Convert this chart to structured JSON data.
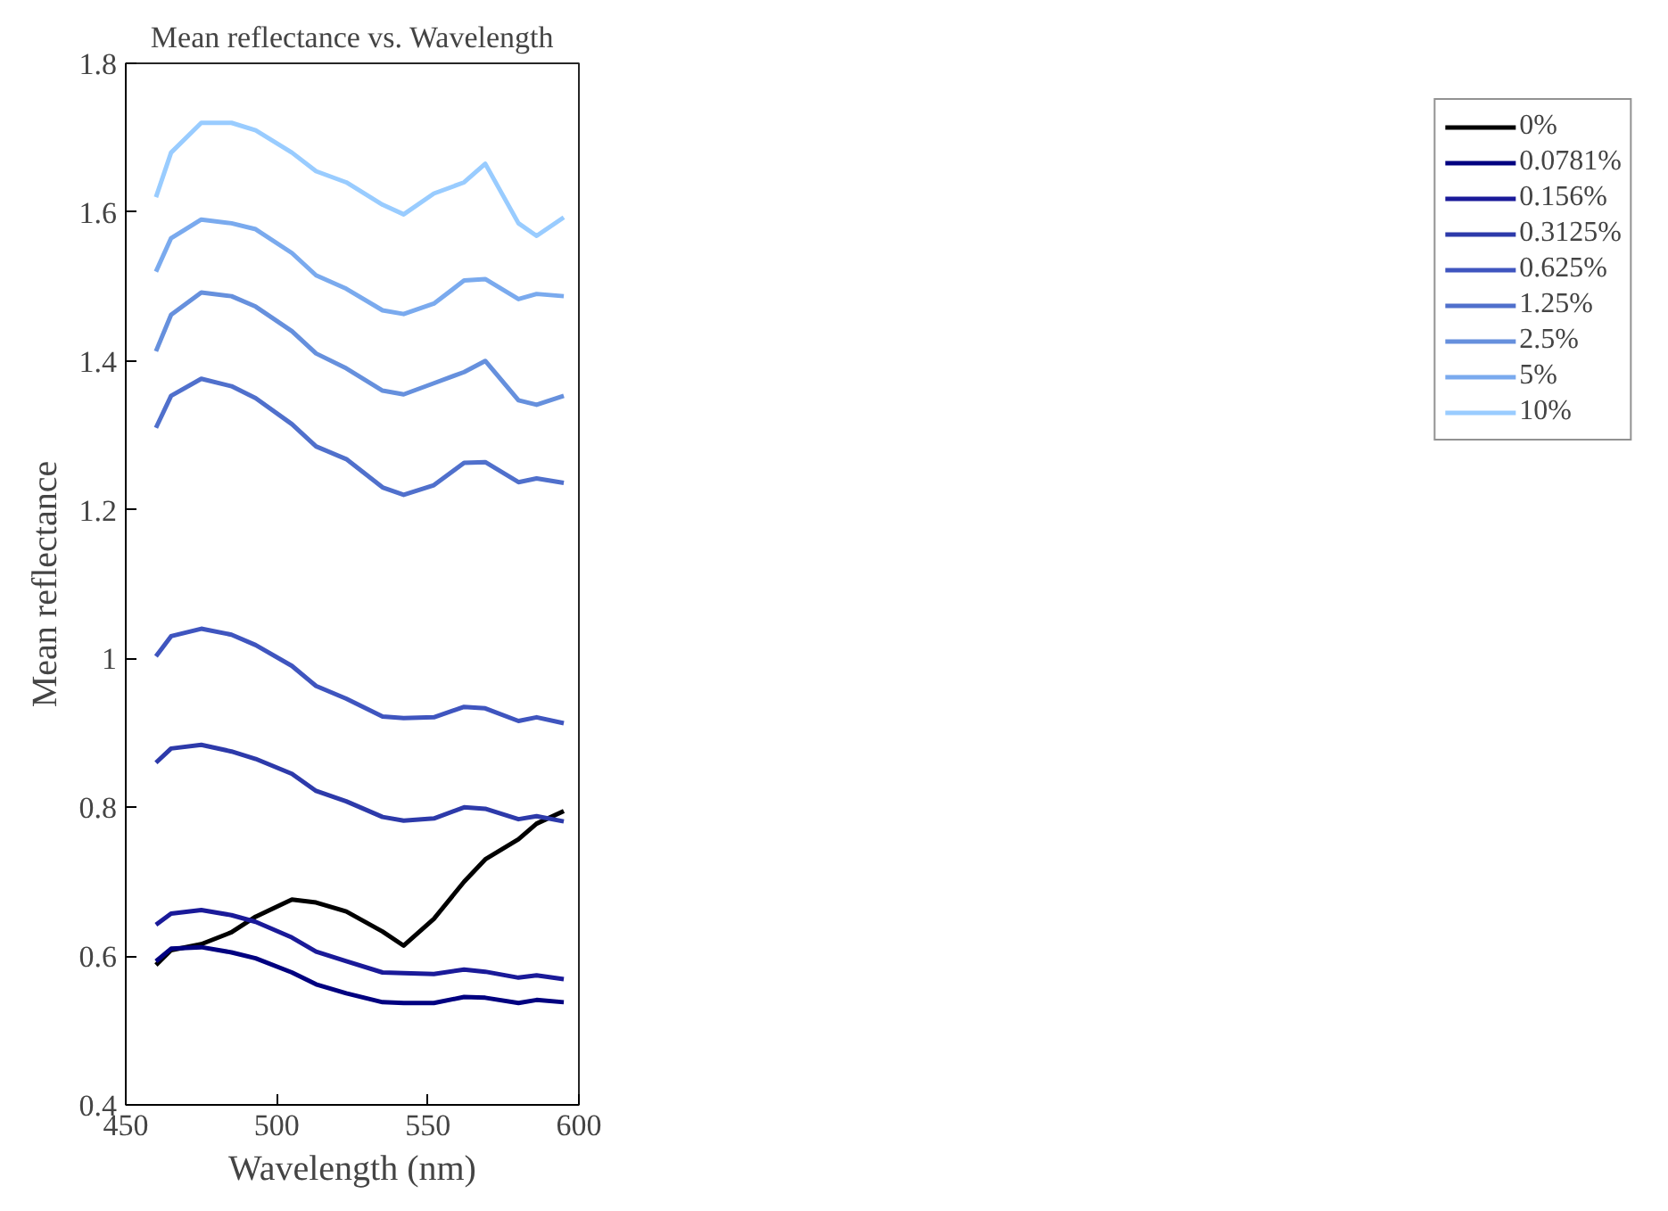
{
  "chart_data": {
    "type": "line",
    "title": "Mean reflectance vs. Wavelength",
    "xlabel": "Wavelength (nm)",
    "ylabel": "Mean reflectance",
    "x": [
      460,
      465,
      475,
      485,
      493,
      505,
      513,
      523,
      535,
      542,
      552,
      562,
      569,
      580,
      586,
      595
    ],
    "xlim": [
      450,
      600
    ],
    "xticks": [
      450,
      500,
      550,
      600
    ],
    "ylim": [
      0.4,
      1.8
    ],
    "yticks": [
      0.4,
      0.6,
      0.8,
      1,
      1.2,
      1.4,
      1.6,
      1.8
    ],
    "grid": false,
    "legend": "right",
    "marker": "none",
    "line_style": "solid",
    "series": [
      {
        "name": "0%",
        "color": "#000000",
        "values": [
          0.588,
          0.608,
          0.616,
          0.632,
          0.653,
          0.676,
          0.672,
          0.66,
          0.633,
          0.614,
          0.65,
          0.7,
          0.73,
          0.757,
          0.778,
          0.795
        ]
      },
      {
        "name": "0.0781%",
        "color": "#000080",
        "values": [
          0.593,
          0.61,
          0.612,
          0.605,
          0.597,
          0.578,
          0.562,
          0.55,
          0.538,
          0.537,
          0.537,
          0.545,
          0.544,
          0.537,
          0.541,
          0.538
        ]
      },
      {
        "name": "0.156%",
        "color": "#1a1a99",
        "values": [
          0.642,
          0.657,
          0.662,
          0.655,
          0.646,
          0.625,
          0.606,
          0.593,
          0.578,
          0.577,
          0.576,
          0.582,
          0.579,
          0.571,
          0.574,
          0.569
        ]
      },
      {
        "name": "0.3125%",
        "color": "#2d3aaa",
        "values": [
          0.86,
          0.879,
          0.884,
          0.875,
          0.865,
          0.845,
          0.822,
          0.808,
          0.787,
          0.782,
          0.785,
          0.8,
          0.798,
          0.784,
          0.788,
          0.781
        ]
      },
      {
        "name": "0.625%",
        "color": "#3f55bf",
        "values": [
          1.003,
          1.03,
          1.04,
          1.032,
          1.018,
          0.99,
          0.963,
          0.946,
          0.922,
          0.92,
          0.921,
          0.935,
          0.933,
          0.916,
          0.921,
          0.913
        ]
      },
      {
        "name": "1.25%",
        "color": "#5070cc",
        "values": [
          1.31,
          1.353,
          1.376,
          1.366,
          1.35,
          1.315,
          1.285,
          1.268,
          1.23,
          1.22,
          1.233,
          1.263,
          1.264,
          1.237,
          1.242,
          1.236
        ]
      },
      {
        "name": "2.5%",
        "color": "#6690dd",
        "values": [
          1.413,
          1.462,
          1.492,
          1.487,
          1.473,
          1.44,
          1.41,
          1.39,
          1.36,
          1.355,
          1.37,
          1.385,
          1.4,
          1.347,
          1.341,
          1.353
        ]
      },
      {
        "name": "5%",
        "color": "#7aaaee",
        "values": [
          1.52,
          1.565,
          1.59,
          1.585,
          1.577,
          1.545,
          1.515,
          1.497,
          1.468,
          1.463,
          1.477,
          1.508,
          1.51,
          1.483,
          1.49,
          1.487
        ]
      },
      {
        "name": "10%",
        "color": "#99ccff",
        "values": [
          1.62,
          1.68,
          1.72,
          1.72,
          1.71,
          1.68,
          1.655,
          1.64,
          1.61,
          1.597,
          1.625,
          1.64,
          1.665,
          1.585,
          1.568,
          1.593
        ]
      }
    ]
  }
}
